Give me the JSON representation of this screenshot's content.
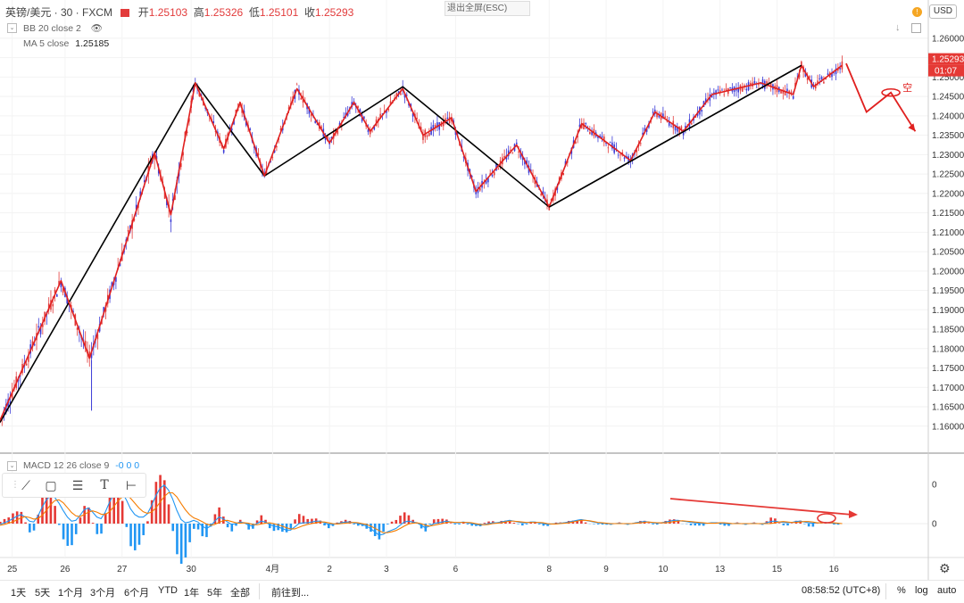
{
  "header": {
    "symbol": "英镑/美元 · 30 · FXCM",
    "open_label": "开",
    "open": "1.25103",
    "high_label": "高",
    "high": "1.25326",
    "low_label": "低",
    "low": "1.25101",
    "close_label": "收",
    "close": "1.25293",
    "bb_indicator": "BB 20 close 2",
    "ma_indicator": "MA 5 close",
    "ma_value": "1.25185",
    "exit_fullscreen": "退出全屏(ESC)",
    "currency": "USD"
  },
  "macd": {
    "label": "MACD 12 26 close 9",
    "values": "-0  0  0",
    "axis_labels": [
      "0",
      "0"
    ]
  },
  "annotation": {
    "short_label": "空"
  },
  "bottom_bar": {
    "ranges": [
      "1天",
      "5天",
      "1个月",
      "3个月",
      "6个月",
      "YTD",
      "1年",
      "5年",
      "全部"
    ],
    "goto": "前往到...",
    "time": "08:58:52 (UTC+8)",
    "percent": "%",
    "log": "log",
    "auto": "auto"
  },
  "colors": {
    "up_candle": "#e23b3b",
    "down_candle": "#3b3bd6",
    "zigzag_small": "#e0201f",
    "zigzag_big": "#000000",
    "macd_line": "#2196f3",
    "signal_line": "#f57c00",
    "hist_pos": "#e53935",
    "hist_neg": "#2196f3",
    "price_tag": "#e53935"
  },
  "chart_data": {
    "type": "candlestick",
    "yaxis": {
      "ticks": [
        "1.26000",
        "1.25500",
        "1.25000",
        "1.24500",
        "1.24000",
        "1.23500",
        "1.23000",
        "1.22500",
        "1.22000",
        "1.21500",
        "1.21000",
        "1.20500",
        "1.20000",
        "1.19500",
        "1.19000",
        "1.18500",
        "1.18000",
        "1.17500",
        "1.17000",
        "1.16500",
        "1.16000"
      ],
      "range": [
        1.1565,
        1.2625
      ],
      "current_price_tag": "1.25293",
      "countdown_tag": "01:07"
    },
    "xaxis": {
      "ticks": [
        "25",
        "26",
        "27",
        "30",
        "4月",
        "2",
        "3",
        "6",
        "8",
        "9",
        "10",
        "13",
        "15",
        "16"
      ],
      "tick_index": [
        3,
        16,
        30,
        47,
        67,
        81,
        95,
        112,
        135,
        149,
        163,
        177,
        191,
        205
      ]
    },
    "zigzag_small": [
      [
        0,
        1.1615
      ],
      [
        15,
        1.1975
      ],
      [
        22,
        1.1775
      ],
      [
        38,
        1.2305
      ],
      [
        42,
        1.2145
      ],
      [
        48,
        1.2485
      ],
      [
        55,
        1.2315
      ],
      [
        59,
        1.2435
      ],
      [
        65,
        1.2245
      ],
      [
        73,
        1.247
      ],
      [
        81,
        1.233
      ],
      [
        87,
        1.2435
      ],
      [
        91,
        1.236
      ],
      [
        99,
        1.247
      ],
      [
        104,
        1.235
      ],
      [
        111,
        1.2395
      ],
      [
        117,
        1.2205
      ],
      [
        127,
        1.2325
      ],
      [
        135,
        1.2165
      ],
      [
        143,
        1.238
      ],
      [
        155,
        1.2285
      ],
      [
        161,
        1.241
      ],
      [
        168,
        1.236
      ],
      [
        175,
        1.2455
      ],
      [
        187,
        1.2485
      ],
      [
        195,
        1.2455
      ],
      [
        197,
        1.253
      ],
      [
        200,
        1.2475
      ],
      [
        207,
        1.253
      ]
    ],
    "zigzag_big": [
      [
        0,
        1.161
      ],
      [
        48,
        1.2485
      ],
      [
        65,
        1.2245
      ],
      [
        99,
        1.2475
      ],
      [
        135,
        1.2165
      ],
      [
        197,
        1.253
      ]
    ],
    "projection": [
      [
        208,
        1.2535
      ],
      [
        213,
        1.241
      ],
      [
        219,
        1.246
      ],
      [
        225,
        1.236
      ]
    ],
    "macd_series": [
      {
        "name": "MACD",
        "values": [
          -0.2,
          0.2,
          0.6,
          1.2,
          1.8,
          2.2,
          1.6,
          0.6,
          0.4,
          1.8,
          4.0,
          5.8,
          6.8,
          6.4,
          5.0,
          3.2,
          1.6,
          0.6,
          0.8,
          2.0,
          3.4,
          3.8,
          2.8,
          1.6,
          1.2,
          2.8,
          5.2,
          7.2,
          8.2,
          7.6,
          5.8,
          3.6,
          2.2,
          1.6,
          1.6,
          2.4,
          4.4,
          6.8,
          8.6,
          9.4,
          8.2,
          6.0,
          3.2,
          1.0,
          0.2,
          0.4,
          0.8,
          0.4,
          -0.6,
          -1.2,
          -0.6,
          0.6,
          1.6,
          1.2,
          0.4,
          -0.2,
          0.0,
          0.4,
          0.2,
          -0.4,
          -0.6,
          0.0,
          0.6,
          0.4,
          -0.2,
          -0.6,
          -0.8,
          -1.2,
          -1.6,
          -1.6,
          -0.8,
          0.0,
          0.2,
          0.2,
          0.4,
          0.6,
          0.6,
          0.2,
          -0.2,
          -0.2,
          0.0,
          0.2,
          0.4,
          0.4,
          0.2,
          0.0,
          -0.2,
          -0.6,
          -1.2,
          -2.0,
          -2.8,
          -2.6,
          -2.0,
          -1.6,
          -1.2,
          -0.4,
          0.4,
          0.6,
          0.4,
          0.2,
          -0.4,
          -1.0,
          -0.6,
          0.0,
          0.2,
          0.4,
          0.6,
          0.4,
          0.2,
          0.2,
          0.4,
          0.2,
          0.0,
          -0.2,
          -0.4,
          -0.2,
          0.0,
          0.2,
          0.2,
          0.4,
          0.6,
          0.8,
          0.6,
          0.4,
          0.2,
          0.2,
          0.4,
          0.4,
          0.2,
          0.0,
          -0.2,
          -0.1,
          0.0,
          0.1,
          0.2,
          0.4,
          0.6,
          0.8,
          1.0,
          0.8,
          0.6,
          0.4,
          0.2,
          0.1,
          0.0,
          -0.1,
          0.0,
          0.1,
          0.0,
          -0.1,
          0.0,
          0.2,
          0.4,
          0.5,
          0.4,
          0.2,
          0.1,
          0.2,
          0.4,
          0.6,
          0.8,
          0.8,
          0.6,
          0.5,
          0.3,
          0.2,
          0.1,
          0.0,
          0.1,
          0.2,
          0.2,
          0.1,
          0.0,
          -0.1,
          0.0,
          0.1,
          0.0,
          -0.1,
          0.0,
          0.1,
          0.0,
          -0.1,
          0.2,
          0.5,
          0.6,
          0.4,
          0.3,
          0.2,
          0.3,
          0.5,
          0.6,
          0.4,
          0.2,
          0.1,
          0.2,
          0.2,
          0.3,
          0.2,
          0.1,
          0.0
        ]
      },
      {
        "name": "Signal",
        "values": [
          -0.4,
          -0.2,
          0.1,
          0.4,
          0.9,
          1.4,
          1.7,
          1.5,
          1.1,
          1.2,
          2.0,
          3.2,
          4.6,
          5.6,
          5.8,
          5.1,
          3.9,
          2.7,
          1.9,
          1.7,
          2.2,
          2.8,
          3.1,
          2.8,
          2.3,
          2.2,
          2.9,
          4.1,
          5.5,
          6.5,
          6.9,
          6.2,
          5.0,
          3.8,
          2.9,
          2.5,
          2.8,
          3.8,
          5.2,
          6.6,
          7.5,
          7.5,
          6.5,
          4.9,
          3.4,
          2.2,
          1.4,
          1.0,
          0.5,
          -0.1,
          -0.4,
          -0.2,
          0.3,
          0.7,
          0.8,
          0.5,
          0.2,
          0.1,
          0.2,
          0.1,
          -0.2,
          -0.3,
          -0.1,
          0.1,
          0.2,
          0.0,
          -0.3,
          -0.6,
          -1.0,
          -1.3,
          -1.3,
          -0.9,
          -0.5,
          -0.2,
          0.0,
          0.2,
          0.4,
          0.4,
          0.2,
          0.0,
          -0.1,
          0.0,
          0.1,
          0.2,
          0.3,
          0.2,
          0.0,
          -0.2,
          -0.6,
          -1.1,
          -1.7,
          -2.2,
          -2.2,
          -2.0,
          -1.7,
          -1.2,
          -0.6,
          -0.1,
          0.1,
          0.2,
          0.0,
          -0.4,
          -0.6,
          -0.4,
          -0.2,
          0.0,
          0.3,
          0.4,
          0.3,
          0.3,
          0.3,
          0.3,
          0.2,
          0.0,
          -0.2,
          -0.3,
          -0.2,
          0.0,
          0.1,
          0.2,
          0.4,
          0.6,
          0.6,
          0.5,
          0.4,
          0.3,
          0.3,
          0.3,
          0.3,
          0.2,
          0.0,
          -0.1,
          -0.1,
          0.0,
          0.1,
          0.2,
          0.4,
          0.6,
          0.8,
          0.8,
          0.7,
          0.5,
          0.3,
          0.2,
          0.1,
          0.0,
          0.0,
          0.0,
          0.0,
          0.0,
          0.0,
          0.1,
          0.2,
          0.3,
          0.4,
          0.3,
          0.2,
          0.2,
          0.2,
          0.3,
          0.5,
          0.6,
          0.7,
          0.6,
          0.5,
          0.4,
          0.3,
          0.2,
          0.1,
          0.1,
          0.1,
          0.2,
          0.2,
          0.1,
          0.0,
          0.0,
          0.0,
          0.0,
          0.0,
          0.0,
          0.0,
          0.0,
          0.0,
          0.0,
          0.2,
          0.4,
          0.5,
          0.4,
          0.3,
          0.3,
          0.4,
          0.5,
          0.5,
          0.4,
          0.2,
          0.2,
          0.2,
          0.2,
          0.2,
          0.1,
          0.0
        ]
      }
    ]
  }
}
